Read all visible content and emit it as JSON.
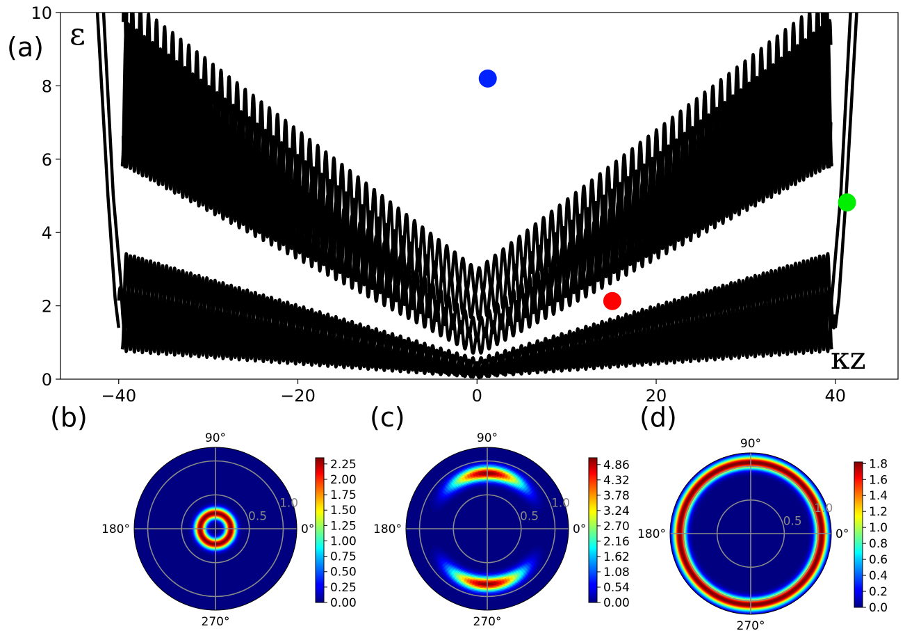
{
  "panel_labels": {
    "a": "(a)",
    "b": "(b)",
    "c": "(c)",
    "d": "(d)"
  },
  "colors": {
    "bands": "#000000",
    "marker_b": "#0022ff",
    "marker_c": "#ff0000",
    "marker_d": "#00ee00",
    "grid": "#8a8a8a"
  },
  "chart_data": [
    {
      "type": "line",
      "panel": "(a)",
      "ylabel": "ε",
      "xlabel": "κz",
      "xlim": [
        -46.5,
        47
      ],
      "ylim": [
        0,
        10
      ],
      "x_ticks": [
        "−40",
        "−20",
        "0",
        "20",
        "40"
      ],
      "x_tick_values": [
        -40,
        -20,
        0,
        20,
        40
      ],
      "y_ticks": [
        "0",
        "2",
        "4",
        "6",
        "8",
        "10"
      ],
      "y_tick_values": [
        0,
        2,
        4,
        6,
        8,
        10
      ],
      "grid": false,
      "series_description": "oscillatory energy bands",
      "envelopes": {
        "lower_band_1_min": [
          [
            -39,
            0.75
          ],
          [
            0,
            0.05
          ],
          [
            39,
            0.75
          ]
        ],
        "lower_band_1_max": [
          [
            -39,
            3.4
          ],
          [
            0,
            0.45
          ],
          [
            39,
            3.4
          ]
        ],
        "lower_band_2_min": [
          [
            -40,
            1.4
          ],
          [
            0,
            0.05
          ],
          [
            40,
            1.4
          ]
        ],
        "upper_band_min": [
          [
            -39.5,
            5.75
          ],
          [
            0,
            0.65
          ],
          [
            39.5,
            5.75
          ]
        ],
        "upper_band_2_min": [
          [
            -39.5,
            5.8
          ],
          [
            0,
            1.05
          ],
          [
            39.5,
            5.8
          ]
        ],
        "outer_parabola_edges": [
          [
            -42.5,
            10
          ],
          [
            -40,
            1.4
          ],
          [
            40,
            1.4
          ],
          [
            42.5,
            10
          ]
        ],
        "inner_parabola_edges": [
          [
            -38.5,
            10
          ],
          [
            -38.8,
            5.75
          ],
          [
            38.8,
            5.75
          ],
          [
            38.5,
            10
          ]
        ]
      },
      "markers": [
        {
          "x": 1.2,
          "y": 8.2,
          "color": "blue"
        },
        {
          "x": 15.1,
          "y": 2.13,
          "color": "red"
        },
        {
          "x": 41.3,
          "y": 4.82,
          "color": "lime"
        }
      ]
    },
    {
      "type": "heatmap",
      "panel": "(b)",
      "projection": "polar",
      "angle_labels": [
        "0°",
        "90°",
        "180°",
        "270°"
      ],
      "radial_ticks": [
        "0.5",
        "1.0"
      ],
      "r_max": 1.2,
      "density": {
        "shape": "ring",
        "peak_r": 0.22,
        "width": 0.08,
        "max": 2.35
      },
      "colorbar_ticks": [
        "0.00",
        "0.25",
        "0.50",
        "0.75",
        "1.00",
        "1.25",
        "1.50",
        "1.75",
        "2.00",
        "2.25"
      ],
      "colorbar_values": [
        0,
        0.25,
        0.5,
        0.75,
        1.0,
        1.25,
        1.5,
        1.75,
        2.0,
        2.25
      ],
      "colorbar_range": [
        0,
        2.35
      ]
    },
    {
      "type": "heatmap",
      "panel": "(c)",
      "projection": "polar",
      "angle_labels": [
        "0°",
        "90°",
        "180°",
        "270°"
      ],
      "radial_ticks": [
        "0.5",
        "1.0"
      ],
      "r_max": 1.2,
      "density": {
        "shape": "arcs",
        "peak_r": 0.82,
        "width": 0.1,
        "angular": "sin^2",
        "max": 5.1
      },
      "colorbar_ticks": [
        "0.00",
        "0.54",
        "1.08",
        "1.62",
        "2.16",
        "2.70",
        "3.24",
        "3.78",
        "4.32",
        "4.86"
      ],
      "colorbar_values": [
        0,
        0.54,
        1.08,
        1.62,
        2.16,
        2.7,
        3.24,
        3.78,
        4.32,
        4.86
      ],
      "colorbar_range": [
        0,
        5.1
      ]
    },
    {
      "type": "heatmap",
      "panel": "(d)",
      "projection": "polar",
      "angle_labels": [
        "0°",
        "90°",
        "180°",
        "270°"
      ],
      "radial_ticks": [
        "0.5",
        "1.0"
      ],
      "r_max": 1.2,
      "density": {
        "shape": "ring",
        "peak_r": 1.05,
        "width": 0.09,
        "max": 1.85
      },
      "colorbar_ticks": [
        "0.0",
        "0.2",
        "0.4",
        "0.6",
        "0.8",
        "1.0",
        "1.2",
        "1.4",
        "1.6",
        "1.8"
      ],
      "colorbar_values": [
        0,
        0.2,
        0.4,
        0.6,
        0.8,
        1.0,
        1.2,
        1.4,
        1.6,
        1.8
      ],
      "colorbar_range": [
        0,
        1.82
      ]
    }
  ]
}
